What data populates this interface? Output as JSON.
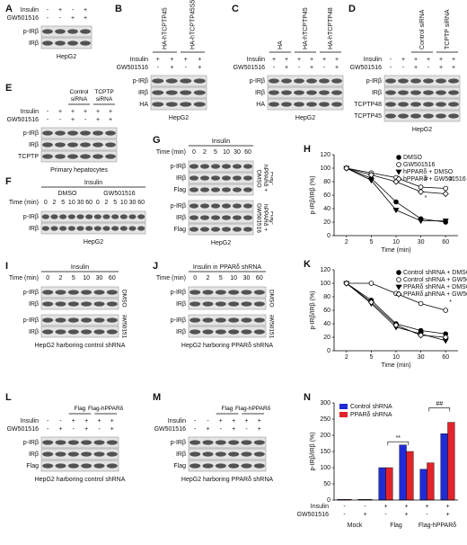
{
  "figure": {
    "blots": [
      {
        "letter": "A",
        "signs": [
          {
            "label": "Insulin",
            "marks": [
              "-",
              "+",
              "-",
              "+"
            ]
          },
          {
            "label": "GW501516",
            "marks": [
              "-",
              "-",
              "+",
              "+"
            ]
          }
        ],
        "bands": [
          [
            "p-IRβ",
            "IRβ"
          ]
        ],
        "caption": "HepG2"
      },
      {
        "letter": "B",
        "columns": [
          "HA-hTCPTP45",
          "HA-hTCPTP45S50/57A"
        ],
        "signs": [
          {
            "label": "Insulin",
            "marks": [
              "+",
              "+",
              "+",
              "+"
            ]
          },
          {
            "label": "GW501516",
            "marks": [
              "-",
              "+",
              "-",
              "+"
            ]
          }
        ],
        "bands": [
          [
            "p-IRβ",
            "IRβ",
            "HA"
          ]
        ],
        "caption": "HepG2"
      },
      {
        "letter": "C",
        "columns": [
          "HA",
          "HA-hTCPTP45",
          "HA-hTCPTP48"
        ],
        "signs": [
          {
            "label": "Insulin",
            "marks": [
              "+",
              "+",
              "+",
              "+",
              "+",
              "+"
            ]
          },
          {
            "label": "GW501516",
            "marks": [
              "-",
              "+",
              "-",
              "+",
              "-",
              "+"
            ]
          }
        ],
        "bands": [
          [
            "p-IRβ",
            "IRβ",
            "HA"
          ]
        ],
        "caption": "HepG2"
      },
      {
        "letter": "D",
        "columns": [
          null,
          "Control siRNA",
          "TCPTP siRNA"
        ],
        "signs": [
          {
            "label": "Insulin",
            "marks": [
              "-",
              "+",
              "+",
              "+",
              "+",
              "+"
            ]
          },
          {
            "label": "GW501516",
            "marks": [
              "-",
              "-",
              "+",
              "-",
              "+",
              "+"
            ]
          }
        ],
        "bands": [
          [
            "p-IRβ",
            "IRβ",
            "TCPTP48",
            "TCPTP45"
          ]
        ],
        "caption": "HepG2"
      },
      {
        "letter": "E",
        "columns": [
          null,
          "Control siRNA",
          "TCPTP siRNA"
        ],
        "signs": [
          {
            "label": "Insulin",
            "marks": [
              "-",
              "+",
              "+",
              "+",
              "+",
              "+"
            ]
          },
          {
            "label": "GW501516",
            "marks": [
              "-",
              "-",
              "+",
              "-",
              "+",
              "+"
            ]
          }
        ],
        "bands": [
          [
            "p-IRβ",
            "IRβ",
            "TCPTP"
          ]
        ],
        "caption": "Primary hepatocytes"
      },
      {
        "letter": "F",
        "top": "Insulin",
        "groups": [
          "DMSO",
          "GW501516"
        ],
        "time_label": "Time (min)",
        "times": [
          0,
          2,
          5,
          10,
          30,
          60,
          0,
          2,
          5,
          10,
          30,
          60
        ],
        "bands": [
          [
            "p-IRβ",
            "IRβ"
          ]
        ],
        "caption": "HepG2"
      },
      {
        "letter": "G",
        "top": "Insulin",
        "time_label": "Time (min)",
        "times": [
          0,
          2,
          5,
          10,
          30,
          60
        ],
        "bands": [
          [
            "p-IRβ",
            "IRβ",
            "Flag"
          ],
          [
            "p-IRβ",
            "IRβ",
            "Flag"
          ]
        ],
        "side": [
          "Flag-hPPARδ + DMSO",
          "Flag-hPPARδ + GW501516"
        ],
        "caption": "HepG2"
      },
      {
        "letter": "I",
        "top": "Insulin",
        "time_label": "Time (min)",
        "times": [
          0,
          2,
          5,
          10,
          30,
          60
        ],
        "bands": [
          [
            "p-IRβ",
            "IRβ"
          ],
          [
            "p-IRβ",
            "IRβ"
          ]
        ],
        "side": [
          "DMSO",
          "GW501516"
        ],
        "caption": "HepG2 harboring control shRNA"
      },
      {
        "letter": "J",
        "top": "Insulin in PPARδ shRNA",
        "time_label": "Time (min)",
        "times": [
          0,
          2,
          5,
          10,
          30,
          60
        ],
        "bands": [
          [
            "p-IRβ",
            "IRβ"
          ],
          [
            "p-IRβ",
            "IRβ"
          ]
        ],
        "side": [
          "DMSO",
          "GW501516"
        ],
        "caption": "HepG2 harboring PPARδ shRNA"
      },
      {
        "letter": "L",
        "columns": [
          null,
          "Flag",
          "Flag-hPPARδ"
        ],
        "signs": [
          {
            "label": "Insulin",
            "marks": [
              "-",
              "-",
              "+",
              "+",
              "+",
              "+"
            ]
          },
          {
            "label": "GW501516",
            "marks": [
              "-",
              "+",
              "-",
              "+",
              "-",
              "+"
            ]
          }
        ],
        "bands": [
          [
            "p-IRβ",
            "IRβ",
            "Flag"
          ]
        ],
        "caption": "HepG2 harboring control shRNA"
      },
      {
        "letter": "M",
        "columns": [
          null,
          "Flag",
          "Flag-hPPARδ"
        ],
        "signs": [
          {
            "label": "Insulin",
            "marks": [
              "-",
              "-",
              "+",
              "+",
              "+",
              "+"
            ]
          },
          {
            "label": "GW501516",
            "marks": [
              "-",
              "+",
              "-",
              "+",
              "-",
              "+"
            ]
          }
        ],
        "bands": [
          [
            "p-IRβ",
            "IRβ",
            "Flag"
          ]
        ],
        "caption": "HepG2 harboring PPARδ shRNA"
      }
    ]
  },
  "chart_data": [
    {
      "letter": "H",
      "type": "line",
      "ylabel": "p-IRβ/IRβ (%)",
      "xlabel": "Time (min)",
      "categories": [
        "2",
        "5",
        "10",
        "30",
        "60"
      ],
      "ylim": [
        0,
        120
      ],
      "yticks": [
        0,
        20,
        40,
        60,
        80,
        100,
        120
      ],
      "series": [
        {
          "name": "DMSO",
          "color": "#000000",
          "marker": "circle",
          "values": [
            100,
            85,
            50,
            25,
            20
          ]
        },
        {
          "name": "GW501516",
          "color": "#000000",
          "marker": "circle-open",
          "values": [
            100,
            93,
            86,
            72,
            70
          ]
        },
        {
          "name": "hPPARδ + DMSO",
          "color": "#000000",
          "marker": "triangle",
          "values": [
            100,
            82,
            38,
            22,
            22
          ]
        },
        {
          "name": "hPPARδ + GW501516",
          "color": "#000000",
          "marker": "diamond-open",
          "values": [
            100,
            90,
            80,
            65,
            62
          ]
        }
      ],
      "annotations": [
        {
          "text": "#",
          "x": "30",
          "y": 84
        },
        {
          "text": "#",
          "x": "60",
          "y": 84
        },
        {
          "text": "*",
          "x": "30",
          "y": 56
        }
      ]
    },
    {
      "letter": "K",
      "type": "line",
      "ylabel": "p-IRβ/IRβ (%)",
      "xlabel": "Time (min)",
      "categories": [
        "2",
        "5",
        "10",
        "30",
        "60"
      ],
      "ylim": [
        0,
        120
      ],
      "yticks": [
        0,
        20,
        40,
        60,
        80,
        100,
        120
      ],
      "series": [
        {
          "name": "Control shRNA + DMSO",
          "color": "#000000",
          "marker": "circle",
          "values": [
            100,
            75,
            40,
            30,
            25
          ]
        },
        {
          "name": "Control shRNA + GW501516",
          "color": "#000000",
          "marker": "circle-open",
          "values": [
            100,
            100,
            85,
            70,
            60
          ]
        },
        {
          "name": "PPARδ shRNA + DMSO",
          "color": "#000000",
          "marker": "triangle",
          "values": [
            100,
            70,
            35,
            25,
            15
          ]
        },
        {
          "name": "PPARδ shRNA + GW501516",
          "color": "#000000",
          "marker": "diamond-open",
          "values": [
            100,
            72,
            38,
            23,
            20
          ]
        }
      ],
      "annotations": [
        {
          "text": "*",
          "x": "10",
          "y": 94
        },
        {
          "text": "*",
          "x": "30",
          "y": 80
        },
        {
          "text": "*",
          "x": "60",
          "y": 72
        }
      ]
    },
    {
      "letter": "N",
      "type": "bar",
      "ylabel": "p-IRβ/IRβ (%)",
      "categories": [
        null,
        null,
        null,
        null,
        null,
        null
      ],
      "ylim": [
        0,
        300
      ],
      "yticks": [
        0,
        50,
        100,
        150,
        200,
        250,
        300
      ],
      "series": [
        {
          "name": "Control shRNA",
          "color": "#1f2bd6",
          "values": [
            2,
            2,
            100,
            170,
            95,
            205
          ]
        },
        {
          "name": "PPARδ shRNA",
          "color": "#e2232a",
          "values": [
            2,
            2,
            100,
            150,
            115,
            240
          ]
        }
      ],
      "rows": [
        {
          "label": "Insulin",
          "marks": [
            "-",
            "-",
            "+",
            "+",
            "+",
            "+"
          ]
        },
        {
          "label": "GW501516",
          "marks": [
            "-",
            "+",
            "-",
            "+",
            "-",
            "+"
          ]
        }
      ],
      "groups": [
        "Mock",
        "Flag",
        "Flag-hPPARδ"
      ],
      "annotations": [
        "**",
        "##"
      ]
    }
  ]
}
